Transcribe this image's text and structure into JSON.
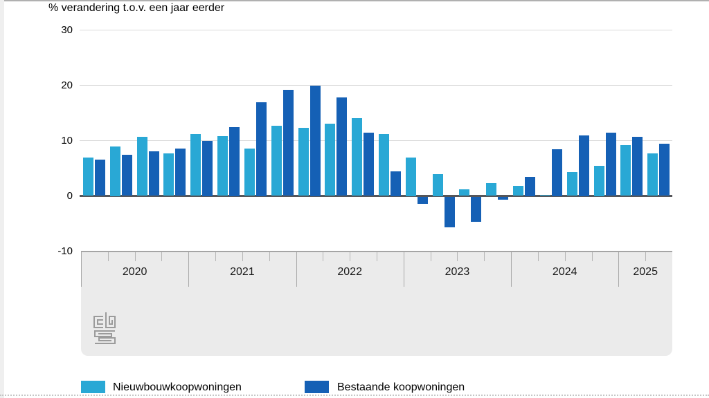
{
  "title": "% verandering t.o.v. een jaar eerder",
  "colors": {
    "light_blue": "#29a8d5",
    "dark_blue": "#1560b5",
    "zero_axis_gray": "#55565a",
    "gridline_gray": "#d9d9d9",
    "band_gray": "#ebebeb"
  },
  "y_axis": {
    "ticks": [
      "30",
      "20",
      "10",
      "0",
      "-10"
    ],
    "tick_values": [
      30,
      20,
      10,
      0,
      -10
    ]
  },
  "legend": {
    "items": [
      {
        "label": "Nieuwbouwkoopwoningen",
        "color": "#29a8d5"
      },
      {
        "label": "Bestaande koopwoningen",
        "color": "#1560b5"
      }
    ]
  },
  "logo_name": "cbs-logo",
  "chart_data": {
    "type": "bar",
    "title": "% verandering t.o.v. een jaar eerder",
    "ylabel": "% verandering t.o.v. een jaar eerder",
    "ylim": [
      -10,
      30
    ],
    "grid": "horizontal-light",
    "legend_position": "bottom",
    "x_years": [
      "2020",
      "2021",
      "2022",
      "2023",
      "2024",
      "2025"
    ],
    "quarters_per_year": [
      4,
      4,
      4,
      4,
      4,
      2
    ],
    "x_quarters": [
      "2020Q1",
      "2020Q2",
      "2020Q3",
      "2020Q4",
      "2021Q1",
      "2021Q2",
      "2021Q3",
      "2021Q4",
      "2022Q1",
      "2022Q2",
      "2022Q3",
      "2022Q4",
      "2023Q1",
      "2023Q2",
      "2023Q3",
      "2023Q4",
      "2024Q1",
      "2024Q2",
      "2024Q3",
      "2024Q4",
      "2025Q1",
      "2025Q2"
    ],
    "series": [
      {
        "name": "Nieuwbouwkoopwoningen",
        "color": "#29a8d5",
        "values": [
          6.9,
          9.0,
          10.7,
          7.7,
          11.2,
          10.8,
          8.6,
          12.7,
          12.3,
          13.1,
          14.1,
          11.2,
          7.0,
          4.0,
          1.2,
          2.3,
          1.8,
          0.2,
          4.3,
          5.5,
          9.2,
          7.7
        ]
      },
      {
        "name": "Bestaande koopwoningen",
        "color": "#1560b5",
        "values": [
          6.6,
          7.4,
          8.1,
          8.6,
          10.0,
          12.5,
          17.0,
          19.2,
          20.0,
          17.8,
          11.4,
          4.5,
          -1.2,
          -5.5,
          -4.5,
          -0.5,
          3.5,
          8.5,
          11.0,
          11.4,
          10.7,
          9.4
        ]
      }
    ]
  }
}
